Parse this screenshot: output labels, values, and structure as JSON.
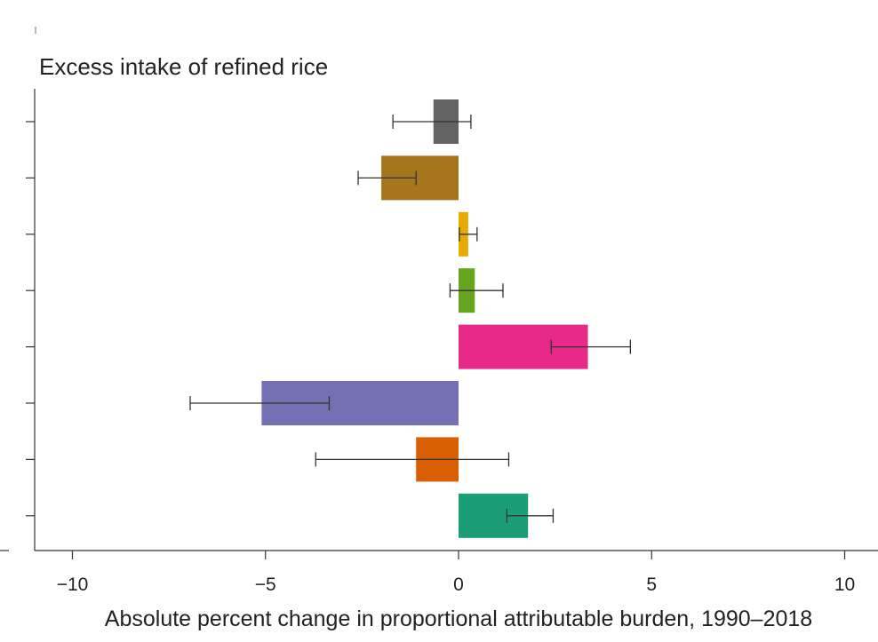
{
  "chart_data": {
    "type": "bar",
    "orientation": "horizontal",
    "title": "Excess intake of refined rice",
    "xlabel": "Absolute percent change in proportional attributable burden, 1990–2018",
    "ylabel": "",
    "xlim": [
      -11,
      11
    ],
    "xticks": [
      -10,
      -5,
      0,
      5,
      10
    ],
    "xtick_labels": [
      "−10",
      "−5",
      "0",
      "5",
      "10"
    ],
    "grid": false,
    "legend": "none",
    "categories": [
      "",
      "",
      "",
      "",
      "",
      "",
      "",
      ""
    ],
    "values": [
      -0.65,
      -2.0,
      0.25,
      0.42,
      3.35,
      -5.1,
      -1.1,
      1.8
    ],
    "error_low": [
      -1.7,
      -2.6,
      0.02,
      -0.22,
      2.4,
      -6.95,
      -3.7,
      1.25
    ],
    "error_high": [
      0.32,
      -1.1,
      0.48,
      1.15,
      4.45,
      -3.35,
      1.3,
      2.45
    ],
    "colors": [
      "#636363",
      "#a6761d",
      "#e6ab02",
      "#66a61e",
      "#e7298a",
      "#7570b3",
      "#d95f02",
      "#1b9e77"
    ]
  }
}
